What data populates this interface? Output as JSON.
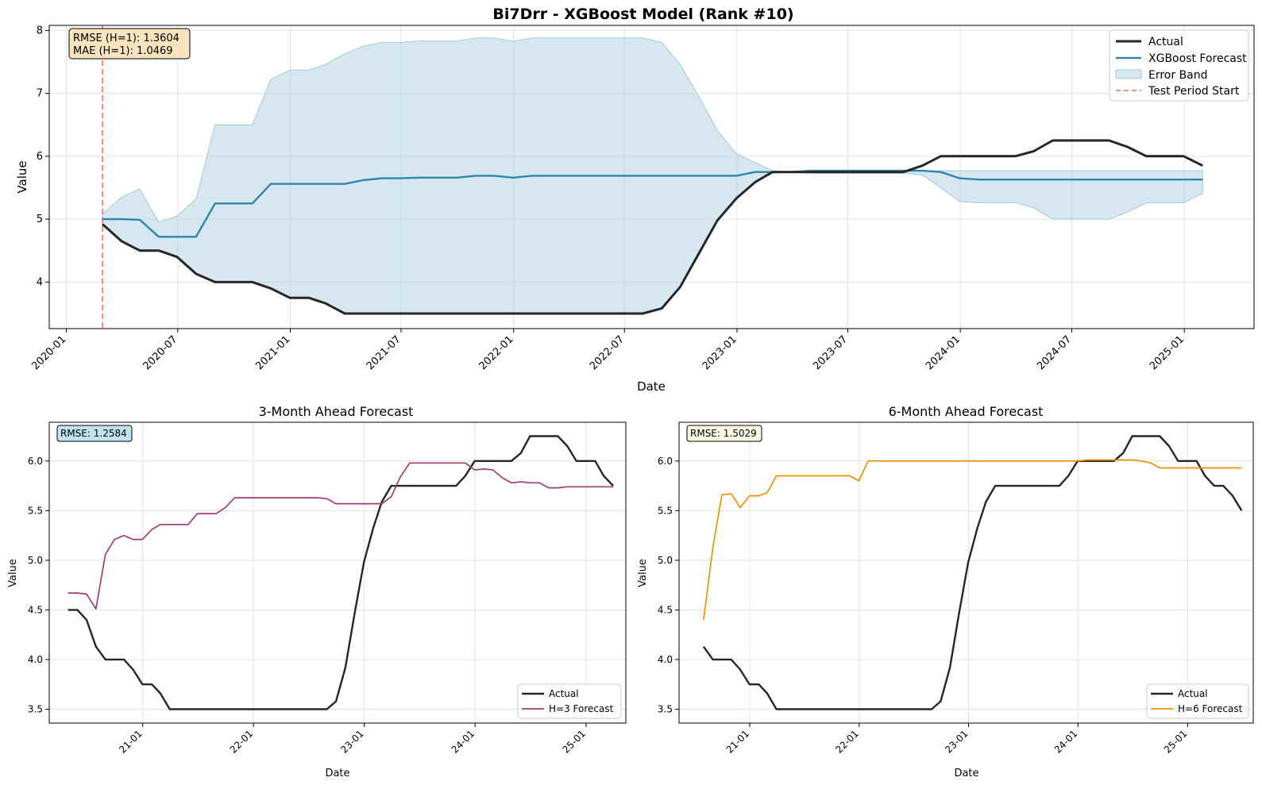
{
  "figure": {
    "title": "Bi7Drr - XGBoost Model (Rank #10)"
  },
  "colors": {
    "actual": "#262626",
    "xgb": "#2e86ab",
    "band": "#a3c9dc",
    "test_line": "#f07060",
    "h3": "#a23b72",
    "h6": "#f18f01",
    "grid": "#e3e3e3",
    "box1_bg": "#f9e3bf",
    "box2_bg": "#bfe3ef",
    "box3_bg": "#fbfbe4"
  },
  "chart_data": [
    {
      "id": "top",
      "type": "line",
      "title": "",
      "xlabel": "Date",
      "ylabel": "Value",
      "xlim": [
        "2019-12-04",
        "2025-04-25"
      ],
      "ylim": [
        3.26,
        8.08
      ],
      "x_ticks": [
        "2020-01",
        "2020-07",
        "2021-01",
        "2021-07",
        "2022-01",
        "2022-07",
        "2023-01",
        "2023-07",
        "2024-01",
        "2024-07",
        "2025-01"
      ],
      "y_ticks": [
        4,
        5,
        6,
        7,
        8
      ],
      "annotation": {
        "line1": "RMSE (H=1): 1.3604",
        "line2": "MAE (H=1): 1.0469"
      },
      "test_period_start": "2020-02-29",
      "legend": {
        "placement": "top-right",
        "entries": [
          "Actual",
          "XGBoost Forecast",
          "Error Band",
          "Test Period Start"
        ]
      },
      "x": [
        "2020-02-29",
        "2020-03-31",
        "2020-04-30",
        "2020-05-31",
        "2020-06-30",
        "2020-07-31",
        "2020-08-31",
        "2020-09-30",
        "2020-10-31",
        "2020-11-30",
        "2020-12-31",
        "2021-01-31",
        "2021-02-28",
        "2021-03-31",
        "2021-04-30",
        "2021-05-31",
        "2021-06-30",
        "2021-07-31",
        "2021-08-31",
        "2021-09-30",
        "2021-10-31",
        "2021-11-30",
        "2021-12-31",
        "2022-01-31",
        "2022-02-28",
        "2022-03-31",
        "2022-04-30",
        "2022-05-31",
        "2022-06-30",
        "2022-07-31",
        "2022-08-31",
        "2022-09-30",
        "2022-10-31",
        "2022-11-30",
        "2022-12-31",
        "2023-01-31",
        "2023-02-28",
        "2023-03-31",
        "2023-04-30",
        "2023-05-31",
        "2023-06-30",
        "2023-07-31",
        "2023-08-31",
        "2023-09-30",
        "2023-10-31",
        "2023-11-30",
        "2023-12-31",
        "2024-01-31",
        "2024-02-29",
        "2024-03-31",
        "2024-04-30",
        "2024-05-31",
        "2024-06-30",
        "2024-07-31",
        "2024-08-31",
        "2024-09-30",
        "2024-10-31",
        "2024-11-30",
        "2024-12-31",
        "2025-01-31"
      ],
      "series": [
        {
          "name": "Actual",
          "values": [
            4.92,
            4.65,
            4.5,
            4.5,
            4.4,
            4.13,
            4.0,
            4.0,
            4.0,
            3.9,
            3.75,
            3.75,
            3.66,
            3.5,
            3.5,
            3.5,
            3.5,
            3.5,
            3.5,
            3.5,
            3.5,
            3.5,
            3.5,
            3.5,
            3.5,
            3.5,
            3.5,
            3.5,
            3.5,
            3.5,
            3.58,
            3.92,
            4.46,
            4.98,
            5.33,
            5.59,
            5.75,
            5.75,
            5.75,
            5.75,
            5.75,
            5.75,
            5.75,
            5.75,
            5.85,
            6.0,
            6.0,
            6.0,
            6.0,
            6.0,
            6.08,
            6.25,
            6.25,
            6.25,
            6.25,
            6.15,
            6.0,
            6.0,
            6.0,
            5.85
          ]
        },
        {
          "name": "XGBoost Forecast",
          "values": [
            5.0,
            5.0,
            4.99,
            4.72,
            4.72,
            4.72,
            5.25,
            5.25,
            5.25,
            5.56,
            5.56,
            5.56,
            5.56,
            5.56,
            5.62,
            5.65,
            5.65,
            5.66,
            5.66,
            5.66,
            5.69,
            5.69,
            5.66,
            5.69,
            5.69,
            5.69,
            5.69,
            5.69,
            5.69,
            5.69,
            5.69,
            5.69,
            5.69,
            5.69,
            5.69,
            5.75,
            5.75,
            5.75,
            5.77,
            5.77,
            5.77,
            5.77,
            5.77,
            5.77,
            5.77,
            5.75,
            5.65,
            5.63,
            5.63,
            5.63,
            5.63,
            5.63,
            5.63,
            5.63,
            5.63,
            5.63,
            5.63,
            5.63,
            5.63,
            5.63
          ]
        },
        {
          "name": "Error Band Upper",
          "values": [
            5.08,
            5.35,
            5.48,
            4.95,
            5.05,
            5.32,
            6.5,
            6.5,
            6.5,
            7.22,
            7.37,
            7.37,
            7.46,
            7.63,
            7.75,
            7.81,
            7.81,
            7.83,
            7.83,
            7.83,
            7.88,
            7.88,
            7.83,
            7.88,
            7.88,
            7.88,
            7.88,
            7.88,
            7.88,
            7.88,
            7.81,
            7.46,
            6.94,
            6.41,
            6.04,
            5.9,
            5.77,
            5.75,
            5.77,
            5.77,
            5.77,
            5.77,
            5.77,
            5.77,
            5.77,
            5.77,
            5.77,
            5.77,
            5.77,
            5.77,
            5.77,
            5.77,
            5.77,
            5.77,
            5.77,
            5.77,
            5.77,
            5.77,
            5.77,
            5.77
          ]
        },
        {
          "name": "Error Band Lower",
          "values": [
            4.92,
            4.65,
            4.5,
            4.5,
            4.4,
            4.13,
            4.0,
            4.0,
            4.0,
            3.9,
            3.75,
            3.75,
            3.66,
            3.5,
            3.5,
            3.5,
            3.5,
            3.5,
            3.5,
            3.5,
            3.5,
            3.5,
            3.5,
            3.5,
            3.5,
            3.5,
            3.5,
            3.5,
            3.5,
            3.5,
            3.58,
            3.92,
            4.46,
            4.98,
            5.33,
            5.59,
            5.73,
            5.75,
            5.73,
            5.73,
            5.73,
            5.73,
            5.73,
            5.73,
            5.7,
            5.5,
            5.28,
            5.26,
            5.26,
            5.26,
            5.18,
            5.0,
            5.0,
            5.0,
            5.0,
            5.11,
            5.26,
            5.26,
            5.26,
            5.41
          ]
        }
      ]
    },
    {
      "id": "h3",
      "type": "line",
      "title": "3-Month Ahead Forecast",
      "xlabel": "Date",
      "ylabel": "Value",
      "xlim": [
        "2020-02-28",
        "2025-05-12"
      ],
      "ylim": [
        3.36,
        6.39
      ],
      "x_ticks": [
        "21-01",
        "22-01",
        "23-01",
        "24-01",
        "25-01"
      ],
      "y_ticks": [
        3.5,
        4.0,
        4.5,
        5.0,
        5.5,
        6.0
      ],
      "annotation": "RMSE: 1.2584",
      "legend": {
        "placement": "bottom-right",
        "entries": [
          "Actual",
          "H=3 Forecast"
        ]
      },
      "x": [
        "2020-04-30",
        "2020-05-31",
        "2020-06-30",
        "2020-07-31",
        "2020-08-31",
        "2020-09-30",
        "2020-10-31",
        "2020-11-30",
        "2020-12-31",
        "2021-01-31",
        "2021-02-28",
        "2021-03-31",
        "2021-04-30",
        "2021-05-31",
        "2021-06-30",
        "2021-07-31",
        "2021-08-31",
        "2021-09-30",
        "2021-10-31",
        "2021-11-30",
        "2021-12-31",
        "2022-01-31",
        "2022-02-28",
        "2022-03-31",
        "2022-04-30",
        "2022-05-31",
        "2022-06-30",
        "2022-07-31",
        "2022-08-31",
        "2022-09-30",
        "2022-10-31",
        "2022-11-30",
        "2022-12-31",
        "2023-01-31",
        "2023-02-28",
        "2023-03-31",
        "2023-04-30",
        "2023-05-31",
        "2023-06-30",
        "2023-07-31",
        "2023-08-31",
        "2023-09-30",
        "2023-10-31",
        "2023-11-30",
        "2023-12-31",
        "2024-01-31",
        "2024-02-29",
        "2024-03-31",
        "2024-04-30",
        "2024-05-31",
        "2024-06-30",
        "2024-07-31",
        "2024-08-31",
        "2024-09-30",
        "2024-10-31",
        "2024-11-30",
        "2024-12-31",
        "2025-01-31",
        "2025-02-28",
        "2025-03-31"
      ],
      "series": [
        {
          "name": "Actual",
          "values": [
            4.5,
            4.5,
            4.4,
            4.13,
            4.0,
            4.0,
            4.0,
            3.9,
            3.75,
            3.75,
            3.66,
            3.5,
            3.5,
            3.5,
            3.5,
            3.5,
            3.5,
            3.5,
            3.5,
            3.5,
            3.5,
            3.5,
            3.5,
            3.5,
            3.5,
            3.5,
            3.5,
            3.5,
            3.5,
            3.58,
            3.92,
            4.46,
            4.98,
            5.33,
            5.59,
            5.75,
            5.75,
            5.75,
            5.75,
            5.75,
            5.75,
            5.75,
            5.75,
            5.85,
            6.0,
            6.0,
            6.0,
            6.0,
            6.0,
            6.08,
            6.25,
            6.25,
            6.25,
            6.25,
            6.15,
            6.0,
            6.0,
            6.0,
            5.85,
            5.75
          ]
        },
        {
          "name": "H=3 Forecast",
          "values": [
            4.67,
            4.67,
            4.66,
            4.51,
            5.06,
            5.21,
            5.25,
            5.21,
            5.21,
            5.31,
            5.36,
            5.36,
            5.36,
            5.36,
            5.47,
            5.47,
            5.47,
            5.53,
            5.63,
            5.63,
            5.63,
            5.63,
            5.63,
            5.63,
            5.63,
            5.63,
            5.63,
            5.63,
            5.62,
            5.57,
            5.57,
            5.57,
            5.57,
            5.57,
            5.57,
            5.64,
            5.84,
            5.98,
            5.98,
            5.98,
            5.98,
            5.98,
            5.98,
            5.98,
            5.91,
            5.92,
            5.91,
            5.83,
            5.78,
            5.79,
            5.78,
            5.78,
            5.73,
            5.73,
            5.74,
            5.74,
            5.74,
            5.74,
            5.74,
            5.74
          ]
        }
      ]
    },
    {
      "id": "h6",
      "type": "line",
      "title": "6-Month Ahead Forecast",
      "xlabel": "Date",
      "ylabel": "Value",
      "xlim": [
        "2020-05-10",
        "2025-08-08"
      ],
      "ylim": [
        3.36,
        6.39
      ],
      "x_ticks": [
        "21-01",
        "22-01",
        "23-01",
        "24-01",
        "25-01"
      ],
      "y_ticks": [
        3.5,
        4.0,
        4.5,
        5.0,
        5.5,
        6.0
      ],
      "annotation": "RMSE: 1.5029",
      "legend": {
        "placement": "bottom-right",
        "entries": [
          "Actual",
          "H=6 Forecast"
        ]
      },
      "x": [
        "2020-07-31",
        "2020-08-31",
        "2020-09-30",
        "2020-10-31",
        "2020-11-30",
        "2020-12-31",
        "2021-01-31",
        "2021-02-28",
        "2021-03-31",
        "2021-04-30",
        "2021-05-31",
        "2021-06-30",
        "2021-07-31",
        "2021-08-31",
        "2021-09-30",
        "2021-10-31",
        "2021-11-30",
        "2021-12-31",
        "2022-01-31",
        "2022-02-28",
        "2022-03-31",
        "2022-04-30",
        "2022-05-31",
        "2022-06-30",
        "2022-07-31",
        "2022-08-31",
        "2022-09-30",
        "2022-10-31",
        "2022-11-30",
        "2022-12-31",
        "2023-01-31",
        "2023-02-28",
        "2023-03-31",
        "2023-04-30",
        "2023-05-31",
        "2023-06-30",
        "2023-07-31",
        "2023-08-31",
        "2023-09-30",
        "2023-10-31",
        "2023-11-30",
        "2023-12-31",
        "2024-01-31",
        "2024-02-29",
        "2024-03-31",
        "2024-04-30",
        "2024-05-31",
        "2024-06-30",
        "2024-07-31",
        "2024-08-31",
        "2024-09-30",
        "2024-10-31",
        "2024-11-30",
        "2024-12-31",
        "2025-01-31",
        "2025-02-28",
        "2025-03-31",
        "2025-04-30",
        "2025-05-31",
        "2025-06-30"
      ],
      "series": [
        {
          "name": "Actual",
          "values": [
            4.13,
            4.0,
            4.0,
            4.0,
            3.9,
            3.75,
            3.75,
            3.66,
            3.5,
            3.5,
            3.5,
            3.5,
            3.5,
            3.5,
            3.5,
            3.5,
            3.5,
            3.5,
            3.5,
            3.5,
            3.5,
            3.5,
            3.5,
            3.5,
            3.5,
            3.5,
            3.58,
            3.92,
            4.46,
            4.98,
            5.33,
            5.59,
            5.75,
            5.75,
            5.75,
            5.75,
            5.75,
            5.75,
            5.75,
            5.75,
            5.85,
            6.0,
            6.0,
            6.0,
            6.0,
            6.0,
            6.08,
            6.25,
            6.25,
            6.25,
            6.25,
            6.15,
            6.0,
            6.0,
            6.0,
            5.85,
            5.75,
            5.75,
            5.65,
            5.5
          ]
        },
        {
          "name": "H=6 Forecast",
          "values": [
            4.4,
            5.13,
            5.66,
            5.67,
            5.53,
            5.65,
            5.65,
            5.68,
            5.85,
            5.85,
            5.85,
            5.85,
            5.85,
            5.85,
            5.85,
            5.85,
            5.85,
            5.8,
            6.0,
            6.0,
            6.0,
            6.0,
            6.0,
            6.0,
            6.0,
            6.0,
            6.0,
            6.0,
            6.0,
            6.0,
            6.0,
            6.0,
            6.0,
            6.0,
            6.0,
            6.0,
            6.0,
            6.0,
            6.0,
            6.0,
            6.0,
            6.0,
            6.01,
            6.01,
            6.01,
            6.01,
            6.01,
            6.01,
            6.0,
            5.98,
            5.93,
            5.93,
            5.93,
            5.93,
            5.93,
            5.93,
            5.93,
            5.93,
            5.93,
            5.93
          ]
        }
      ]
    }
  ]
}
